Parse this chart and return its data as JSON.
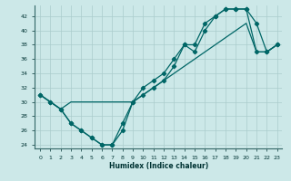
{
  "xlabel": "Humidex (Indice chaleur)",
  "bg_color": "#cce8e8",
  "line_color": "#006666",
  "xlim": [
    -0.5,
    23.5
  ],
  "ylim": [
    23.5,
    43.5
  ],
  "yticks": [
    24,
    26,
    28,
    30,
    32,
    34,
    36,
    38,
    40,
    42
  ],
  "xticks": [
    0,
    1,
    2,
    3,
    4,
    5,
    6,
    7,
    8,
    9,
    10,
    11,
    12,
    13,
    14,
    15,
    16,
    17,
    18,
    19,
    20,
    21,
    22,
    23
  ],
  "series1": {
    "x": [
      0,
      1,
      2,
      3,
      4,
      5,
      6,
      7,
      8,
      9,
      10,
      11,
      12,
      13,
      14,
      15,
      16,
      17,
      18,
      19,
      20,
      21,
      22,
      23
    ],
    "y": [
      31,
      30,
      29,
      27,
      26,
      25,
      24,
      24,
      26,
      30,
      31,
      32,
      33,
      35,
      38,
      37,
      40,
      42,
      43,
      43,
      43,
      37,
      37,
      38
    ]
  },
  "series2": {
    "x": [
      0,
      1,
      2,
      3,
      4,
      5,
      6,
      7,
      8,
      9,
      10,
      11,
      12,
      13,
      14,
      15,
      16,
      17,
      18,
      19,
      20,
      21,
      22,
      23
    ],
    "y": [
      31,
      30,
      29,
      27,
      26,
      25,
      24,
      24,
      27,
      30,
      32,
      33,
      34,
      36,
      38,
      38,
      41,
      42,
      43,
      43,
      43,
      41,
      37,
      38
    ]
  },
  "series3": {
    "x": [
      0,
      1,
      2,
      3,
      4,
      5,
      6,
      7,
      8,
      9,
      10,
      11,
      12,
      13,
      14,
      15,
      16,
      17,
      18,
      19,
      20,
      21,
      22,
      23
    ],
    "y": [
      31,
      30,
      29,
      30,
      30,
      30,
      30,
      30,
      30,
      30,
      31,
      32,
      33,
      34,
      35,
      36,
      37,
      38,
      39,
      40,
      41,
      37,
      37,
      38
    ]
  },
  "grid_color": "#aacccc",
  "grid_lw": 0.5,
  "line_lw": 0.9,
  "marker_size": 2.2,
  "tick_fontsize": 4.5,
  "xlabel_fontsize": 5.5
}
